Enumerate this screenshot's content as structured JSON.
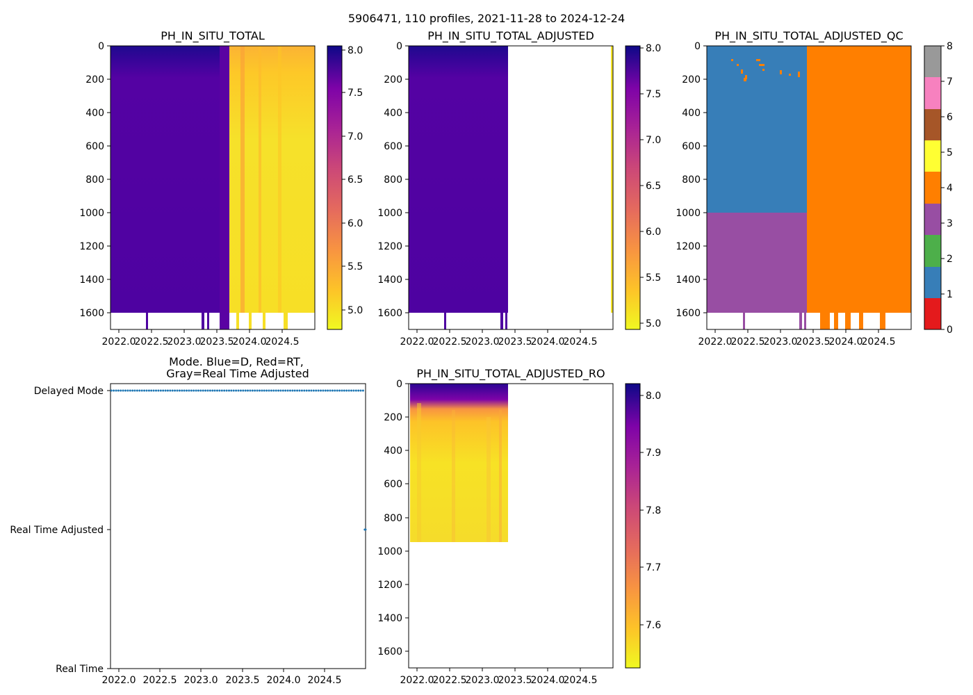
{
  "figure": {
    "suptitle": "5906471, 110 profiles, 2021-11-28 to 2024-12-24"
  },
  "chart_data": [
    {
      "id": "ph_raw",
      "type": "heatmap",
      "title": "PH_IN_SITU_TOTAL",
      "x_ticks": [
        "2022.0",
        "2022.5",
        "2023.0",
        "2023.5",
        "2024.0",
        "2024.5"
      ],
      "xlim": [
        2021.9,
        2025.0
      ],
      "y_ticks": [
        "0",
        "200",
        "400",
        "600",
        "800",
        "1000",
        "1200",
        "1400",
        "1600"
      ],
      "ylim": [
        1700,
        0
      ],
      "colormap": "plasma_r",
      "colorbar_ticks": [
        "5.0",
        "5.5",
        "6.0",
        "6.5",
        "7.0",
        "7.5",
        "8.0"
      ],
      "colorbar_range": [
        4.8,
        8.05
      ],
      "profiles": [
        {
          "x_start": 2021.9,
          "x_end": 2023.5,
          "depth_max": 1600,
          "surface_value": 8.0,
          "deep_value": 7.45
        },
        {
          "x_start": 2023.5,
          "x_end": 2023.6,
          "depth_max": 1700,
          "surface_value": 7.4,
          "deep_value": 7.5
        },
        {
          "x_start": 2023.6,
          "x_end": 2025.0,
          "depth_max": 1600,
          "surface_value": 5.3,
          "deep_value": 4.95
        }
      ]
    },
    {
      "id": "ph_adjusted",
      "type": "heatmap",
      "title": "PH_IN_SITU_TOTAL_ADJUSTED",
      "x_ticks": [
        "2022.0",
        "2022.5",
        "2023.0",
        "2023.5",
        "2024.0",
        "2024.5"
      ],
      "xlim": [
        2021.9,
        2025.0
      ],
      "y_ticks": [
        "0",
        "200",
        "400",
        "600",
        "800",
        "1000",
        "1200",
        "1400",
        "1600"
      ],
      "ylim": [
        1700,
        0
      ],
      "colormap": "plasma_r",
      "colorbar_ticks": [
        "5.0",
        "5.5",
        "6.0",
        "6.5",
        "7.0",
        "7.5",
        "8.0"
      ],
      "colorbar_range": [
        4.9,
        8.05
      ],
      "profiles": [
        {
          "x_start": 2021.9,
          "x_end": 2023.4,
          "depth_max": 1600,
          "surface_value": 8.0,
          "deep_value": 7.45
        },
        {
          "x_start": 2024.97,
          "x_end": 2025.0,
          "depth_max": 1600,
          "surface_value": 5.0,
          "deep_value": 5.0
        }
      ]
    },
    {
      "id": "ph_adjusted_qc",
      "type": "heatmap",
      "title": "PH_IN_SITU_TOTAL_ADJUSTED_QC",
      "x_ticks": [
        "2022.0",
        "2022.5",
        "2023.0",
        "2023.5",
        "2024.0",
        "2024.5"
      ],
      "xlim": [
        2021.9,
        2025.0
      ],
      "y_ticks": [
        "0",
        "200",
        "400",
        "600",
        "800",
        "1000",
        "1200",
        "1400",
        "1600"
      ],
      "ylim": [
        1700,
        0
      ],
      "colorbar_ticks": [
        "0",
        "1",
        "2",
        "3",
        "4",
        "5",
        "6",
        "7",
        "8"
      ],
      "colorbar_colors": [
        "#e41a1c",
        "#377eb8",
        "#4daf4a",
        "#984ea3",
        "#ff7f00",
        "#ffff33",
        "#a65628",
        "#f781bf",
        "#999999"
      ],
      "regions": [
        {
          "qc": 1,
          "x_start": 2021.9,
          "x_end": 2023.4,
          "depth_start": 0,
          "depth_end": 1000
        },
        {
          "qc": 3,
          "x_start": 2021.9,
          "x_end": 2023.4,
          "depth_start": 1000,
          "depth_end": 1600
        },
        {
          "qc": 4,
          "x_start": 2023.4,
          "x_end": 2025.0,
          "depth_start": 0,
          "depth_end": 1600
        }
      ]
    },
    {
      "id": "mode",
      "type": "scatter",
      "title": "Mode. Blue=D, Red=RT,\nGray=Real Time Adjusted",
      "title_lines": [
        "Mode. Blue=D, Red=RT,",
        "Gray=Real Time Adjusted"
      ],
      "x_ticks": [
        "2022.0",
        "2022.5",
        "2023.0",
        "2023.5",
        "2024.0",
        "2024.5"
      ],
      "xlim": [
        2021.9,
        2024.98
      ],
      "y_ticks": [
        "Delayed Mode",
        "Real Time Adjusted",
        "Real Time"
      ],
      "series": [
        {
          "name": "Delayed Mode",
          "x_start": 2021.91,
          "x_end": 2024.95,
          "count": 108,
          "color": "#1f77b4"
        },
        {
          "name": "Real Time Adjusted",
          "x_start": 2024.97,
          "x_end": 2024.98,
          "count": 2,
          "color": "#1f77b4"
        }
      ]
    },
    {
      "id": "ph_adjusted_ro",
      "type": "heatmap",
      "title": "PH_IN_SITU_TOTAL_ADJUSTED_RO",
      "x_ticks": [
        "2022.0",
        "2022.5",
        "2023.0",
        "2023.5",
        "2024.0",
        "2024.5"
      ],
      "xlim": [
        2021.9,
        2025.0
      ],
      "y_ticks": [
        "0",
        "200",
        "400",
        "600",
        "800",
        "1000",
        "1200",
        "1400",
        "1600"
      ],
      "ylim": [
        1700,
        0
      ],
      "colormap": "plasma_r",
      "colorbar_ticks": [
        "7.6",
        "7.7",
        "7.8",
        "7.9",
        "8.0"
      ],
      "colorbar_range": [
        7.52,
        8.02
      ],
      "profiles": [
        {
          "x_start": 2021.9,
          "x_end": 2023.4,
          "depth_max": 950,
          "surface_value": 8.0,
          "deep_value": 7.56
        }
      ]
    }
  ]
}
